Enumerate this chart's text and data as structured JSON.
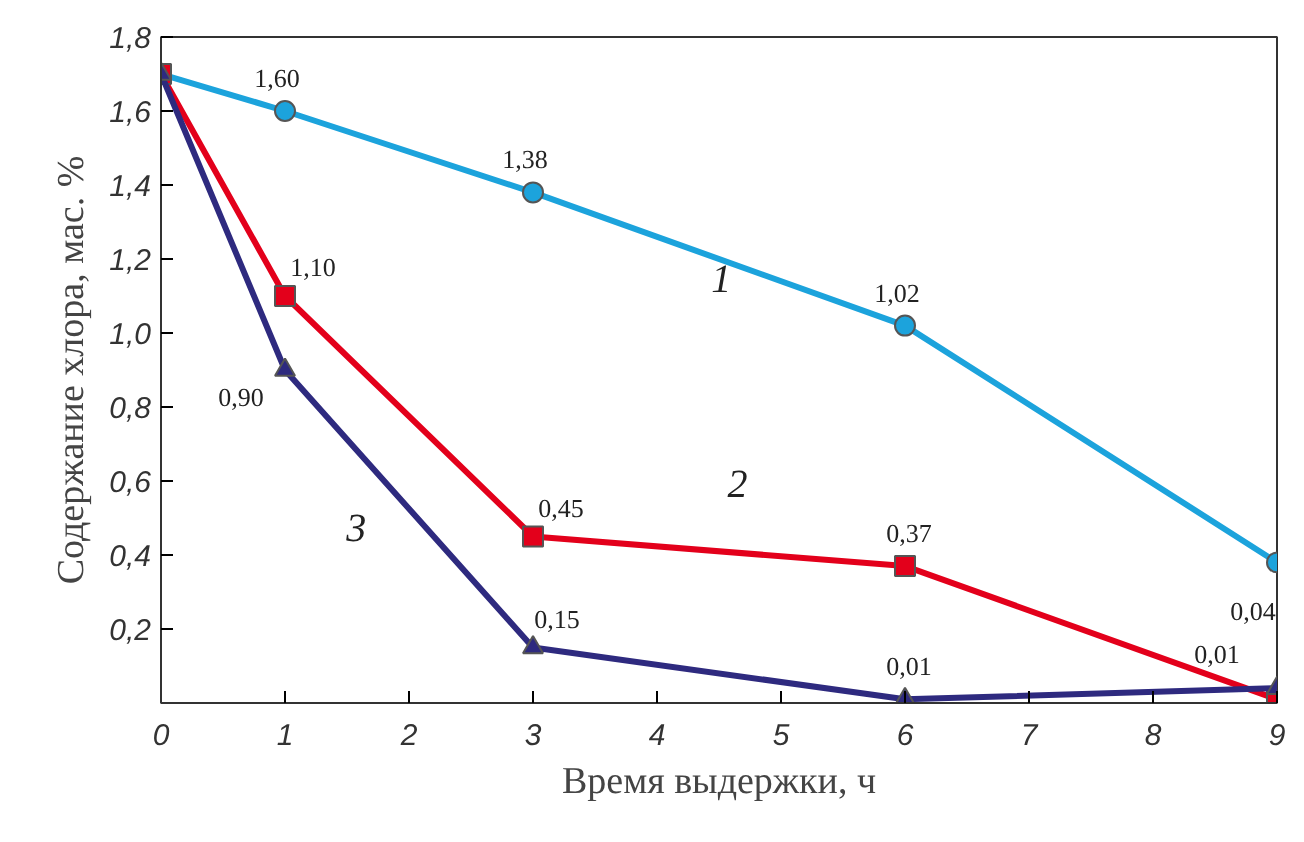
{
  "chart_data": {
    "type": "line",
    "xlabel": "Время выдержки, ч",
    "ylabel": "Содержание хлора, мас. %",
    "xlim": [
      0,
      9
    ],
    "ylim": [
      0,
      1.8
    ],
    "xticks": [
      0,
      1,
      2,
      3,
      4,
      5,
      6,
      7,
      8,
      9
    ],
    "yticks": [
      {
        "value": 0.2,
        "label": "0,2"
      },
      {
        "value": 0.4,
        "label": "0,4"
      },
      {
        "value": 0.6,
        "label": "0,6"
      },
      {
        "value": 0.8,
        "label": "0,8"
      },
      {
        "value": 1.0,
        "label": "1,0"
      },
      {
        "value": 1.2,
        "label": "1,2"
      },
      {
        "value": 1.4,
        "label": "1,4"
      },
      {
        "value": 1.6,
        "label": "1,6"
      },
      {
        "value": 1.8,
        "label": "1,8"
      }
    ],
    "grid": false,
    "line_style": "solid",
    "series": [
      {
        "name": "1",
        "color": "#1ca3dc",
        "marker": "circle",
        "x": [
          0,
          1,
          3,
          6,
          9
        ],
        "values": [
          1.7,
          1.6,
          1.38,
          1.02,
          0.38
        ],
        "value_labels": [
          null,
          "1,60",
          "1,38",
          "1,02",
          null
        ]
      },
      {
        "name": "2",
        "color": "#e3001b",
        "marker": "square",
        "x": [
          0,
          1,
          3,
          6,
          9
        ],
        "values": [
          1.7,
          1.1,
          0.45,
          0.37,
          0.01
        ],
        "value_labels": [
          null,
          "1,10",
          "0,45",
          "0,37",
          "0,01"
        ]
      },
      {
        "name": "3",
        "color": "#2e2a7f",
        "marker": "triangle",
        "x": [
          0,
          1,
          3,
          6,
          9
        ],
        "values": [
          1.7,
          0.9,
          0.15,
          0.01,
          0.04
        ],
        "value_labels": [
          null,
          "0,90",
          "0,15",
          "0,01",
          "0,04"
        ]
      }
    ]
  }
}
